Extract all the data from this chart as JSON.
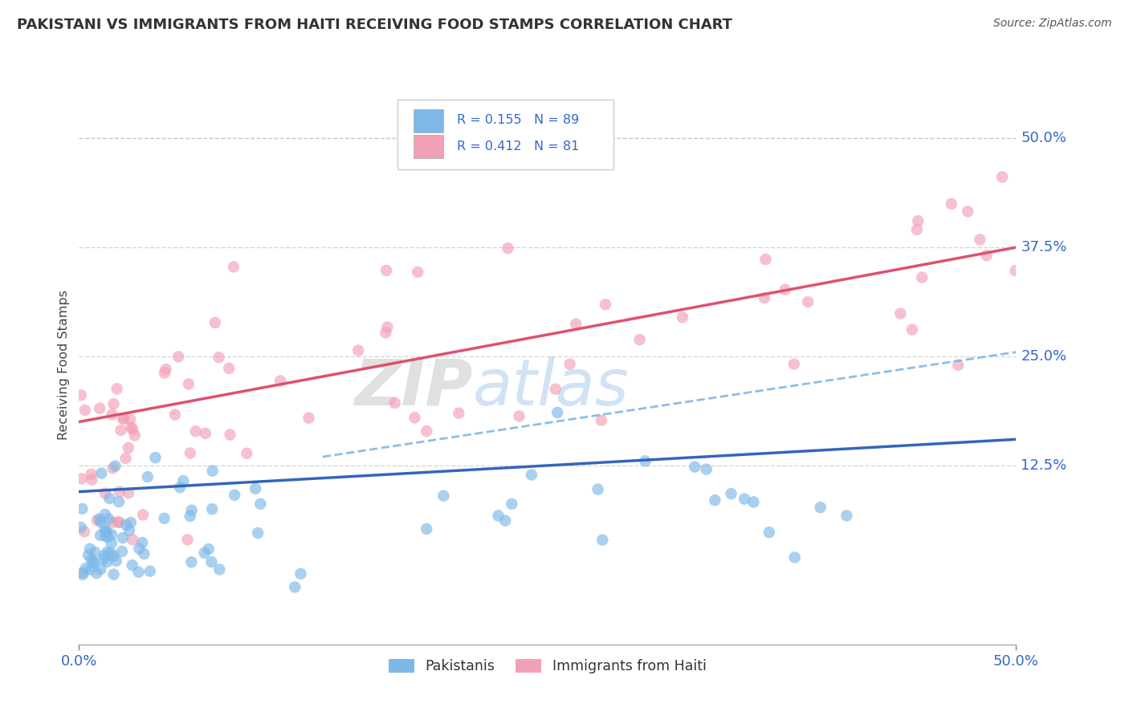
{
  "title": "PAKISTANI VS IMMIGRANTS FROM HAITI RECEIVING FOOD STAMPS CORRELATION CHART",
  "source": "Source: ZipAtlas.com",
  "ylabel": "Receiving Food Stamps",
  "ytick_labels": [
    "12.5%",
    "25.0%",
    "37.5%",
    "50.0%"
  ],
  "ytick_values": [
    0.125,
    0.25,
    0.375,
    0.5
  ],
  "xmin": 0.0,
  "xmax": 0.5,
  "ymin": -0.08,
  "ymax": 0.56,
  "pakistani_color": "#7DB8E8",
  "haiti_color": "#F2A0B5",
  "trend_pak_color": "#3366BB",
  "trend_pak_dash_color": "#7FB8E8",
  "trend_haiti_color": "#E05070",
  "background_color": "#FFFFFF",
  "grid_color": "#CCCCCC",
  "tick_label_color": "#3366CC",
  "title_color": "#333333",
  "watermark_zip": "ZIP",
  "watermark_atlas": "atlas",
  "legend_text_color": "#3366CC",
  "legend_label_color": "#333333"
}
